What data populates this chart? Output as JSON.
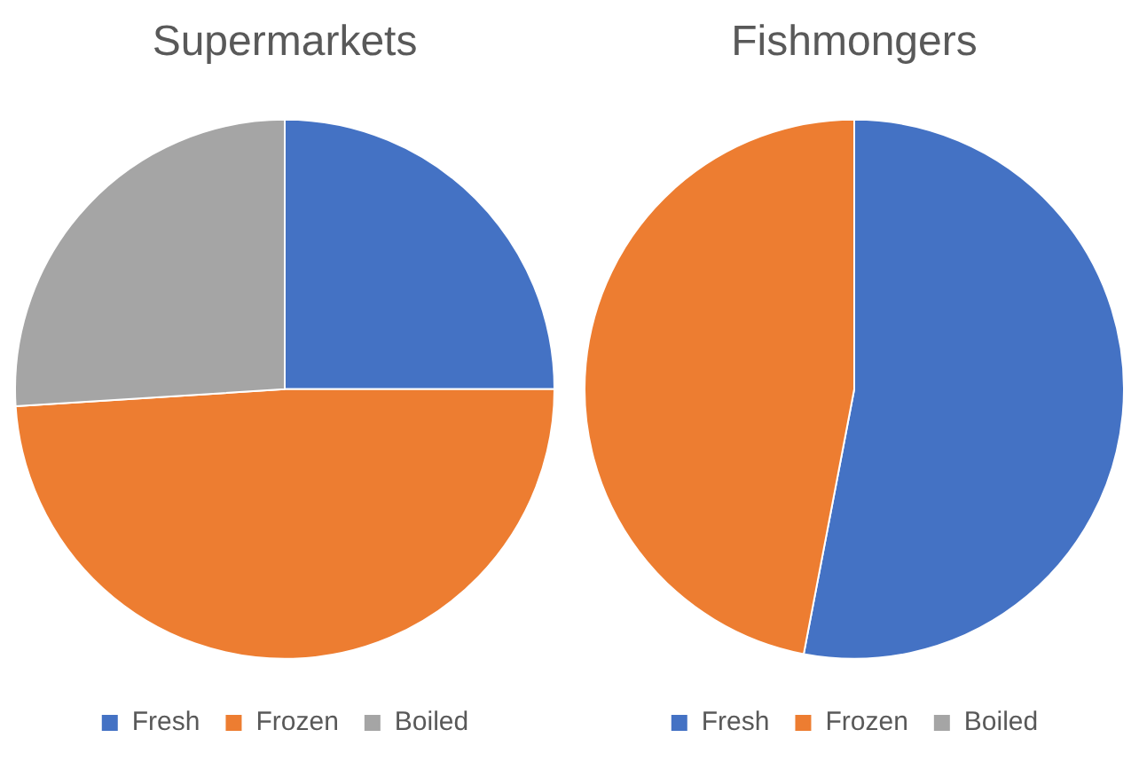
{
  "chart_data": [
    {
      "type": "pie",
      "title": "Supermarkets",
      "categories": [
        "Fresh",
        "Frozen",
        "Boiled"
      ],
      "values": [
        25,
        49,
        26
      ],
      "colors": [
        "#4472c4",
        "#ed7d31",
        "#a5a5a5"
      ],
      "legend": "bottom"
    },
    {
      "type": "pie",
      "title": "Fishmongers",
      "categories": [
        "Fresh",
        "Frozen",
        "Boiled"
      ],
      "values": [
        53,
        47,
        0
      ],
      "colors": [
        "#4472c4",
        "#ed7d31",
        "#a5a5a5"
      ],
      "legend": "bottom"
    }
  ]
}
